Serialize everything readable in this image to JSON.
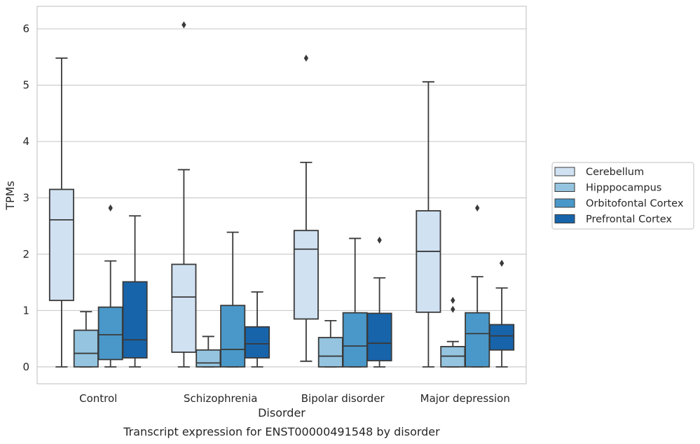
{
  "chart_data": {
    "type": "boxplot",
    "caption": "Transcript expression for ENST00000491548 by disorder",
    "xlabel": "Disorder",
    "ylabel": "TPMs",
    "categories": [
      "Control",
      "Schizophrenia",
      "Bipolar disorder",
      "Major depression"
    ],
    "ylim": [
      -0.3,
      6.4
    ],
    "yticks": [
      "0",
      "1",
      "2",
      "3",
      "4",
      "5",
      "6"
    ],
    "grid": true,
    "legend_position": "right",
    "series": [
      {
        "name": "Cerebellum",
        "color": "#d0e1f2",
        "boxes": [
          {
            "whislo": 0,
            "q1": 1.18,
            "med": 2.61,
            "q3": 3.15,
            "whishi": 5.48,
            "fliers": []
          },
          {
            "whislo": 0,
            "q1": 0.26,
            "med": 1.24,
            "q3": 1.82,
            "whishi": 3.5,
            "fliers": [
              6.07
            ]
          },
          {
            "whislo": 0.1,
            "q1": 0.85,
            "med": 2.09,
            "q3": 2.42,
            "whishi": 3.63,
            "fliers": [
              5.48
            ]
          },
          {
            "whislo": 0,
            "q1": 0.97,
            "med": 2.05,
            "q3": 2.77,
            "whishi": 5.06,
            "fliers": []
          }
        ]
      },
      {
        "name": "Hipppocampus",
        "color": "#94c4df",
        "boxes": [
          {
            "whislo": 0,
            "q1": 0,
            "med": 0.24,
            "q3": 0.65,
            "whishi": 0.98,
            "fliers": []
          },
          {
            "whislo": 0,
            "q1": 0,
            "med": 0.07,
            "q3": 0.3,
            "whishi": 0.54,
            "fliers": []
          },
          {
            "whislo": 0,
            "q1": 0,
            "med": 0.19,
            "q3": 0.52,
            "whishi": 0.82,
            "fliers": []
          },
          {
            "whislo": 0,
            "q1": 0,
            "med": 0.19,
            "q3": 0.36,
            "whishi": 0.45,
            "fliers": [
              1.02,
              1.18
            ]
          }
        ]
      },
      {
        "name": "Orbitofontal Cortex",
        "color": "#4a98c9",
        "boxes": [
          {
            "whislo": 0,
            "q1": 0.13,
            "med": 0.57,
            "q3": 1.06,
            "whishi": 1.88,
            "fliers": [
              2.82
            ]
          },
          {
            "whislo": 0,
            "q1": 0,
            "med": 0.31,
            "q3": 1.09,
            "whishi": 2.39,
            "fliers": []
          },
          {
            "whislo": 0,
            "q1": 0,
            "med": 0.37,
            "q3": 0.96,
            "whishi": 2.28,
            "fliers": []
          },
          {
            "whislo": 0,
            "q1": 0,
            "med": 0.59,
            "q3": 0.96,
            "whishi": 1.6,
            "fliers": [
              2.82
            ]
          }
        ]
      },
      {
        "name": "Prefrontal Cortex",
        "color": "#1764ab",
        "boxes": [
          {
            "whislo": 0,
            "q1": 0.16,
            "med": 0.48,
            "q3": 1.51,
            "whishi": 2.68,
            "fliers": []
          },
          {
            "whislo": 0,
            "q1": 0.16,
            "med": 0.41,
            "q3": 0.71,
            "whishi": 1.33,
            "fliers": []
          },
          {
            "whislo": 0,
            "q1": 0.11,
            "med": 0.42,
            "q3": 0.95,
            "whishi": 1.58,
            "fliers": [
              2.25
            ]
          },
          {
            "whislo": 0,
            "q1": 0.3,
            "med": 0.55,
            "q3": 0.75,
            "whishi": 1.4,
            "fliers": [
              1.84
            ]
          }
        ]
      }
    ]
  }
}
